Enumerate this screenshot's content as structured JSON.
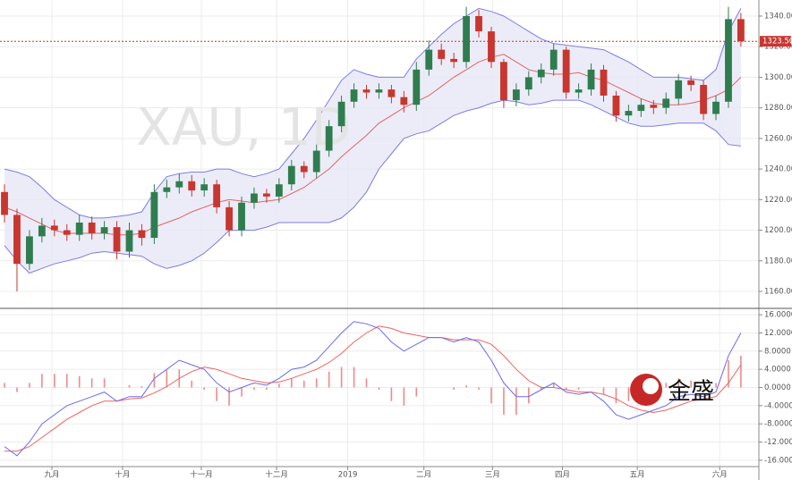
{
  "chart_data": [
    {
      "type": "candlestick",
      "watermark": "XAU, 1D",
      "up_color": "#2f7d4f",
      "down_color": "#c8362f",
      "band_color": "#7c7ce6",
      "band_fill": "#e6e6f5",
      "middle_color": "#e06565",
      "ylim": [
        1148.9,
        1350.5
      ],
      "yticks": [
        {
          "value": 1160,
          "label": "1160.00"
        },
        {
          "value": 1180,
          "label": "1180.00"
        },
        {
          "value": 1200,
          "label": "1200.00"
        },
        {
          "value": 1220,
          "label": "1220.00"
        },
        {
          "value": 1240,
          "label": "1240.00"
        },
        {
          "value": 1260,
          "label": "1260.00"
        },
        {
          "value": 1280,
          "label": "1280.00"
        },
        {
          "value": 1300,
          "label": "1300.00"
        },
        {
          "value": 1320,
          "label": "1320.00"
        },
        {
          "value": 1340,
          "label": "1340.00"
        }
      ],
      "grid": true,
      "last_price": {
        "value": 1323.5,
        "label": "1323.50"
      },
      "open": [
        1225,
        1210,
        1178,
        1196,
        1203,
        1200,
        1197,
        1205,
        1198,
        1202,
        1186,
        1200,
        1195,
        1225,
        1228,
        1232,
        1226,
        1230,
        1215,
        1200,
        1218,
        1224,
        1222,
        1230,
        1242,
        1238,
        1252,
        1268,
        1284,
        1292,
        1290,
        1292,
        1287,
        1282,
        1305,
        1318,
        1312,
        1310,
        1340,
        1330,
        1310,
        1285,
        1292,
        1300,
        1305,
        1318,
        1290,
        1292,
        1305,
        1288,
        1275,
        1278,
        1282,
        1280,
        1286,
        1298,
        1295,
        1276,
        1284,
        1338
      ],
      "high": [
        1230,
        1214,
        1200,
        1208,
        1207,
        1204,
        1210,
        1209,
        1206,
        1206,
        1205,
        1204,
        1230,
        1233,
        1237,
        1236,
        1234,
        1233,
        1219,
        1222,
        1228,
        1227,
        1234,
        1246,
        1245,
        1256,
        1272,
        1288,
        1296,
        1295,
        1296,
        1295,
        1291,
        1310,
        1324,
        1322,
        1316,
        1346,
        1344,
        1333,
        1312,
        1296,
        1304,
        1309,
        1322,
        1320,
        1296,
        1309,
        1308,
        1291,
        1282,
        1286,
        1285,
        1290,
        1302,
        1301,
        1298,
        1288,
        1346,
        1342
      ],
      "low": [
        1205,
        1160,
        1174,
        1192,
        1196,
        1193,
        1193,
        1194,
        1194,
        1181,
        1182,
        1190,
        1191,
        1221,
        1224,
        1222,
        1222,
        1211,
        1196,
        1196,
        1214,
        1218,
        1218,
        1226,
        1234,
        1234,
        1248,
        1264,
        1280,
        1286,
        1286,
        1283,
        1277,
        1278,
        1301,
        1308,
        1306,
        1306,
        1326,
        1306,
        1280,
        1281,
        1288,
        1296,
        1301,
        1286,
        1286,
        1288,
        1284,
        1271,
        1271,
        1274,
        1276,
        1276,
        1282,
        1291,
        1272,
        1272,
        1280,
        1320
      ],
      "close": [
        1210,
        1178,
        1196,
        1203,
        1200,
        1197,
        1205,
        1198,
        1202,
        1186,
        1200,
        1195,
        1225,
        1228,
        1232,
        1226,
        1230,
        1215,
        1200,
        1218,
        1224,
        1222,
        1230,
        1242,
        1238,
        1252,
        1268,
        1284,
        1292,
        1290,
        1292,
        1287,
        1282,
        1305,
        1318,
        1312,
        1310,
        1340,
        1330,
        1310,
        1285,
        1292,
        1300,
        1305,
        1318,
        1290,
        1292,
        1305,
        1288,
        1275,
        1278,
        1282,
        1280,
        1286,
        1298,
        1295,
        1276,
        1284,
        1338,
        1323.5
      ],
      "upper": [
        1240,
        1238,
        1235,
        1228,
        1220,
        1215,
        1210,
        1208,
        1208,
        1209,
        1210,
        1212,
        1225,
        1235,
        1237,
        1238,
        1238,
        1240,
        1240,
        1237,
        1235,
        1237,
        1240,
        1250,
        1260,
        1272,
        1285,
        1298,
        1305,
        1302,
        1300,
        1300,
        1300,
        1312,
        1320,
        1328,
        1335,
        1340,
        1345,
        1343,
        1340,
        1335,
        1330,
        1325,
        1322,
        1321,
        1320,
        1319,
        1318,
        1314,
        1310,
        1305,
        1300,
        1300,
        1300,
        1299,
        1298,
        1305,
        1330,
        1345
      ],
      "middle": [
        1215,
        1212,
        1208,
        1204,
        1200,
        1198,
        1198,
        1198,
        1198,
        1197,
        1197,
        1198,
        1202,
        1205,
        1208,
        1212,
        1215,
        1218,
        1220,
        1219,
        1218,
        1219,
        1220,
        1224,
        1228,
        1234,
        1240,
        1248,
        1255,
        1262,
        1270,
        1275,
        1280,
        1284,
        1288,
        1294,
        1300,
        1305,
        1310,
        1313,
        1315,
        1310,
        1305,
        1303,
        1302,
        1302,
        1303,
        1300,
        1298,
        1294,
        1290,
        1286,
        1283,
        1282,
        1282,
        1283,
        1285,
        1288,
        1292,
        1300
      ],
      "lower": [
        1190,
        1180,
        1172,
        1175,
        1178,
        1180,
        1182,
        1185,
        1186,
        1185,
        1184,
        1183,
        1178,
        1175,
        1177,
        1180,
        1185,
        1192,
        1200,
        1200,
        1200,
        1202,
        1205,
        1205,
        1205,
        1205,
        1205,
        1208,
        1215,
        1225,
        1240,
        1250,
        1260,
        1263,
        1265,
        1270,
        1275,
        1278,
        1280,
        1283,
        1285,
        1284,
        1282,
        1283,
        1285,
        1285,
        1285,
        1282,
        1278,
        1274,
        1270,
        1268,
        1268,
        1269,
        1270,
        1270,
        1270,
        1265,
        1256,
        1255
      ]
    },
    {
      "type": "macd",
      "logo": "金盛",
      "macd_color": "#6a6af0",
      "signal_color": "#ef6262",
      "hist_color": "#f08a8a",
      "xlim": [
        -0.36,
        60.44
      ],
      "xticks": [
        {
          "value": 3.8,
          "label": "九月"
        },
        {
          "value": 9.46,
          "label": "十月"
        },
        {
          "value": 15.77,
          "label": "十一月"
        },
        {
          "value": 21.8,
          "label": "十二月"
        },
        {
          "value": 27.5,
          "label": "2019"
        },
        {
          "value": 33.6,
          "label": "二月"
        },
        {
          "value": 39.1,
          "label": "三月"
        },
        {
          "value": 44.7,
          "label": "四月"
        },
        {
          "value": 50.7,
          "label": "五月"
        },
        {
          "value": 57.3,
          "label": "六月"
        }
      ],
      "ylim": [
        -17.4,
        17.4
      ],
      "yticks": [
        {
          "value": -16,
          "label": "-16.0000"
        },
        {
          "value": -12,
          "label": "-12.0000"
        },
        {
          "value": -8,
          "label": "-8.0000"
        },
        {
          "value": -4,
          "label": "-4.0000"
        },
        {
          "value": 0,
          "label": "0.0000"
        },
        {
          "value": 4,
          "label": "4.0000"
        },
        {
          "value": 8,
          "label": "8.0000"
        },
        {
          "value": 12,
          "label": "12.0000"
        },
        {
          "value": 16,
          "label": "16.0000"
        }
      ],
      "macd": [
        -13,
        -15,
        -12,
        -8,
        -6,
        -4,
        -3,
        -2,
        -1,
        -3,
        -2,
        -2,
        2,
        4,
        6,
        5,
        4,
        1,
        -1,
        0,
        1,
        0.5,
        2,
        4,
        4.5,
        6,
        9,
        12,
        14.5,
        14,
        13,
        10,
        8,
        9.5,
        11,
        11,
        10,
        11,
        10,
        6,
        1,
        -2,
        -2,
        -0.5,
        1,
        -1,
        -1.5,
        -1,
        -3,
        -6,
        -7,
        -6,
        -5,
        -4,
        -2,
        -1.5,
        -2,
        -1,
        7,
        12
      ],
      "signal": [
        -14,
        -14,
        -13,
        -11,
        -9,
        -7,
        -5.5,
        -4,
        -3,
        -3,
        -2.5,
        -2.3,
        -1.2,
        0.2,
        2,
        3.5,
        4.5,
        4,
        3,
        2,
        1.5,
        1,
        1.2,
        2,
        3,
        4,
        5.5,
        7.5,
        10,
        12,
        13.5,
        13,
        12,
        11.5,
        11,
        11,
        10.5,
        10.5,
        10.5,
        9.5,
        7,
        4,
        1.5,
        0,
        0,
        -0.5,
        -1,
        -1,
        -1.5,
        -2.5,
        -4,
        -5,
        -5.5,
        -5,
        -4,
        -3,
        -2.5,
        -2,
        1,
        5
      ],
      "histogram": [
        1,
        -1,
        1,
        3,
        3,
        3,
        2.5,
        2,
        2,
        0,
        0.5,
        0.3,
        3.2,
        3.8,
        4,
        1.5,
        -0.5,
        -3,
        -4,
        -2,
        -0.5,
        -0.5,
        0.8,
        2,
        1.5,
        2,
        3.5,
        4.5,
        4.5,
        2,
        -0.5,
        -3,
        -4,
        -2,
        0,
        0,
        -0.5,
        0.5,
        -0.5,
        -3.5,
        -6,
        -6,
        -3.5,
        -0.5,
        1,
        -0.5,
        -0.5,
        0,
        -1.5,
        -3.5,
        -3,
        -1,
        0.5,
        1,
        2,
        1.5,
        0.5,
        1,
        6,
        7
      ]
    }
  ]
}
